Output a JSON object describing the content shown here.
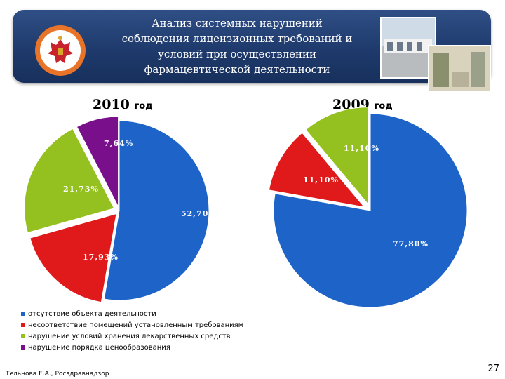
{
  "header": {
    "title_lines": [
      "Анализ системных нарушений",
      "соблюдения лицензионных требований и",
      "условий при осуществлении",
      "фармацевтической деятельности"
    ]
  },
  "legend_items": [
    {
      "label": "отсутствие объекта деятельности",
      "color": "#1e64c8"
    },
    {
      "label": "несоответствие помещений установленным требованиям",
      "color": "#e01a1a"
    },
    {
      "label": "нарушение условий хранения лекарственных средств",
      "color": "#94c11f"
    },
    {
      "label": "нарушение порядка ценообразования",
      "color": "#7a0f8c"
    }
  ],
  "chart_data": [
    {
      "type": "pie",
      "title": "2010",
      "title_unit": "год",
      "categories": [
        "отсутствие объекта деятельности",
        "несоответствие помещений установленным требованиям",
        "нарушение условий хранения лекарственных средств",
        "нарушение порядка ценообразования"
      ],
      "values": [
        52.7,
        17.93,
        21.73,
        7.64
      ],
      "labels": [
        "52,70%",
        "17,93%",
        "21,73%",
        "7,64%"
      ],
      "colors": [
        "#1e64c8",
        "#e01a1a",
        "#94c11f",
        "#7a0f8c"
      ]
    },
    {
      "type": "pie",
      "title": "2009",
      "title_unit": "год",
      "categories": [
        "отсутствие объекта деятельности",
        "несоответствие помещений установленным требованиям",
        "нарушение условий хранения лекарственных средств"
      ],
      "values": [
        77.8,
        11.1,
        11.1
      ],
      "labels": [
        "77,80%",
        "11,10%",
        "11,10%"
      ],
      "colors": [
        "#1e64c8",
        "#e01a1a",
        "#94c11f"
      ]
    }
  ],
  "footer": {
    "author": "Тельнова Е.А., Росздравнадзор",
    "page": "27"
  }
}
